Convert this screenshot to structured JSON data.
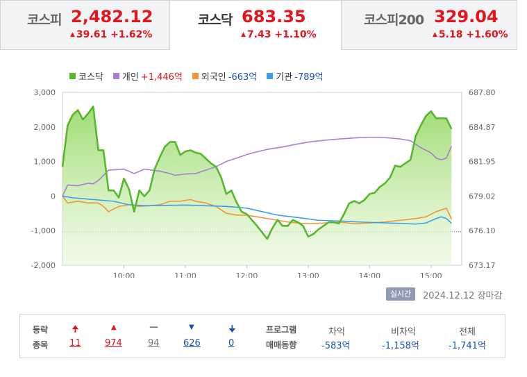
{
  "tabs": [
    {
      "name": "코스피",
      "value": "2,482.12",
      "change": "39.61 +1.62%",
      "active": false
    },
    {
      "name": "코스닥",
      "value": "683.35",
      "change": "7.43 +1.10%",
      "active": true
    },
    {
      "name": "코스피200",
      "value": "329.04",
      "change": "5.18 +1.60%",
      "active": false
    }
  ],
  "legend": [
    {
      "name": "코스닥",
      "value": "",
      "color": "#57b82e"
    },
    {
      "name": "개인",
      "value": "+1,446억",
      "color": "#a77fd1"
    },
    {
      "name": "외국인",
      "value": "-663억",
      "color": "#f29433"
    },
    {
      "name": "기관",
      "value": "-789억",
      "color": "#3c9fe6"
    }
  ],
  "realtime_label": "실시간",
  "date_text": "2024.12.12 장마감",
  "bottom": {
    "rise_label_1": "등락",
    "rise_label_2": "종목",
    "counts": [
      {
        "label": "11",
        "icon": "upper-limit-arrow",
        "color": "red"
      },
      {
        "label": "974",
        "icon": "rise-triangle",
        "color": "red"
      },
      {
        "label": "94",
        "icon": "flat-dash",
        "color": "gray"
      },
      {
        "label": "626",
        "icon": "fall-triangle",
        "color": "blue"
      },
      {
        "label": "0",
        "icon": "lower-limit-arrow",
        "color": "blue"
      }
    ],
    "program_label_1": "프로그램",
    "program_label_2": "매매동향",
    "program": [
      {
        "head": "차익",
        "value": "-583억"
      },
      {
        "head": "비차익",
        "value": "-1,158억"
      },
      {
        "head": "전체",
        "value": "-1,741억"
      }
    ]
  },
  "chart_data": {
    "type": "line",
    "x_ticks": [
      "10:00",
      "11:00",
      "12:00",
      "13:00",
      "14:00",
      "15:00"
    ],
    "x_range": [
      "09:00",
      "15:30"
    ],
    "y_left": {
      "ticks": [
        "3,000",
        "2,000",
        "1,000",
        "0",
        "-1,000",
        "-2,000"
      ],
      "range": [
        -2000,
        3000
      ]
    },
    "y_right": {
      "ticks": [
        "687.80",
        "684.87",
        "681.95",
        "679.02",
        "676.10",
        "673.17"
      ],
      "range": [
        673.17,
        687.8
      ]
    },
    "reference_line": -1030,
    "series": [
      {
        "name": "코스닥",
        "axis": "right",
        "color": "#57b82e",
        "fill": true,
        "points": [
          [
            0,
            681.5
          ],
          [
            5,
            685
          ],
          [
            10,
            685.9
          ],
          [
            15,
            686.3
          ],
          [
            20,
            685.5
          ],
          [
            25,
            686
          ],
          [
            30,
            686.6
          ],
          [
            35,
            682.9
          ],
          [
            40,
            682.9
          ],
          [
            45,
            679.5
          ],
          [
            50,
            679.5
          ],
          [
            55,
            678.9
          ],
          [
            60,
            680.5
          ],
          [
            65,
            679.6
          ],
          [
            70,
            677.7
          ],
          [
            75,
            679.5
          ],
          [
            80,
            679
          ],
          [
            85,
            679.5
          ],
          [
            90,
            681.3
          ],
          [
            95,
            682.3
          ],
          [
            100,
            683.2
          ],
          [
            105,
            683.6
          ],
          [
            110,
            683.6
          ],
          [
            115,
            682.5
          ],
          [
            120,
            682.8
          ],
          [
            125,
            682.9
          ],
          [
            130,
            682.7
          ],
          [
            135,
            682.6
          ],
          [
            140,
            682.2
          ],
          [
            145,
            681.8
          ],
          [
            150,
            681.5
          ],
          [
            155,
            680.6
          ],
          [
            160,
            679.2
          ],
          [
            165,
            679.5
          ],
          [
            170,
            678.5
          ],
          [
            175,
            677.7
          ],
          [
            180,
            677.5
          ],
          [
            190,
            676.5
          ],
          [
            200,
            675.4
          ],
          [
            205,
            676.3
          ],
          [
            210,
            677
          ],
          [
            215,
            676.5
          ],
          [
            220,
            676.5
          ],
          [
            225,
            677
          ],
          [
            230,
            676.8
          ],
          [
            235,
            676.5
          ],
          [
            240,
            675.6
          ],
          [
            245,
            675.8
          ],
          [
            250,
            676.2
          ],
          [
            255,
            676.5
          ],
          [
            260,
            676.8
          ],
          [
            265,
            676.8
          ],
          [
            270,
            676.7
          ],
          [
            275,
            677.5
          ],
          [
            280,
            678.4
          ],
          [
            285,
            678.6
          ],
          [
            290,
            678.4
          ],
          [
            295,
            678.7
          ],
          [
            300,
            679.2
          ],
          [
            305,
            679.3
          ],
          [
            310,
            679.8
          ],
          [
            315,
            680.1
          ],
          [
            320,
            680.6
          ],
          [
            325,
            681.6
          ],
          [
            330,
            681.5
          ],
          [
            335,
            681.8
          ],
          [
            340,
            682.1
          ],
          [
            345,
            684.1
          ],
          [
            350,
            685
          ],
          [
            355,
            685.8
          ],
          [
            360,
            686.2
          ],
          [
            365,
            685.6
          ],
          [
            375,
            685.6
          ],
          [
            380,
            684.7
          ]
        ]
      },
      {
        "name": "개인",
        "axis": "left",
        "color": "#a77fd1",
        "fill": false,
        "points": [
          [
            0,
            0
          ],
          [
            5,
            320
          ],
          [
            15,
            300
          ],
          [
            25,
            370
          ],
          [
            30,
            350
          ],
          [
            35,
            450
          ],
          [
            45,
            750
          ],
          [
            60,
            780
          ],
          [
            70,
            650
          ],
          [
            80,
            780
          ],
          [
            95,
            720
          ],
          [
            105,
            650
          ],
          [
            110,
            600
          ],
          [
            120,
            640
          ],
          [
            130,
            650
          ],
          [
            140,
            750
          ],
          [
            150,
            850
          ],
          [
            160,
            1000
          ],
          [
            170,
            1100
          ],
          [
            180,
            1200
          ],
          [
            190,
            1280
          ],
          [
            200,
            1350
          ],
          [
            215,
            1420
          ],
          [
            225,
            1480
          ],
          [
            240,
            1560
          ],
          [
            255,
            1610
          ],
          [
            270,
            1650
          ],
          [
            285,
            1680
          ],
          [
            300,
            1700
          ],
          [
            310,
            1700
          ],
          [
            320,
            1680
          ],
          [
            330,
            1650
          ],
          [
            340,
            1600
          ],
          [
            350,
            1400
          ],
          [
            360,
            1250
          ],
          [
            365,
            1100
          ],
          [
            370,
            1050
          ],
          [
            375,
            1100
          ],
          [
            380,
            1446
          ]
        ]
      },
      {
        "name": "외국인",
        "axis": "left",
        "color": "#f29433",
        "fill": false,
        "points": [
          [
            0,
            0
          ],
          [
            5,
            -200
          ],
          [
            15,
            -150
          ],
          [
            25,
            -200
          ],
          [
            35,
            -200
          ],
          [
            40,
            -300
          ],
          [
            45,
            -450
          ],
          [
            55,
            -300
          ],
          [
            65,
            -250
          ],
          [
            75,
            -300
          ],
          [
            85,
            -280
          ],
          [
            95,
            -250
          ],
          [
            105,
            -150
          ],
          [
            115,
            -150
          ],
          [
            125,
            -100
          ],
          [
            130,
            -150
          ],
          [
            140,
            -200
          ],
          [
            150,
            -300
          ],
          [
            160,
            -500
          ],
          [
            170,
            -550
          ],
          [
            180,
            -550
          ],
          [
            190,
            -600
          ],
          [
            200,
            -650
          ],
          [
            210,
            -700
          ],
          [
            220,
            -750
          ],
          [
            230,
            -780
          ],
          [
            240,
            -800
          ],
          [
            255,
            -780
          ],
          [
            270,
            -750
          ],
          [
            285,
            -800
          ],
          [
            300,
            -780
          ],
          [
            315,
            -750
          ],
          [
            330,
            -700
          ],
          [
            345,
            -650
          ],
          [
            355,
            -600
          ],
          [
            365,
            -450
          ],
          [
            375,
            -350
          ],
          [
            380,
            -663
          ]
        ]
      },
      {
        "name": "기관",
        "axis": "left",
        "color": "#3c9fe6",
        "fill": false,
        "points": [
          [
            0,
            0
          ],
          [
            10,
            -50
          ],
          [
            30,
            -100
          ],
          [
            50,
            -150
          ],
          [
            65,
            -250
          ],
          [
            80,
            -280
          ],
          [
            100,
            -270
          ],
          [
            120,
            -260
          ],
          [
            140,
            -280
          ],
          [
            160,
            -300
          ],
          [
            180,
            -350
          ],
          [
            195,
            -450
          ],
          [
            210,
            -550
          ],
          [
            230,
            -620
          ],
          [
            250,
            -700
          ],
          [
            270,
            -720
          ],
          [
            290,
            -750
          ],
          [
            310,
            -770
          ],
          [
            330,
            -790
          ],
          [
            345,
            -810
          ],
          [
            355,
            -780
          ],
          [
            365,
            -650
          ],
          [
            370,
            -600
          ],
          [
            375,
            -650
          ],
          [
            380,
            -789
          ]
        ]
      }
    ]
  }
}
